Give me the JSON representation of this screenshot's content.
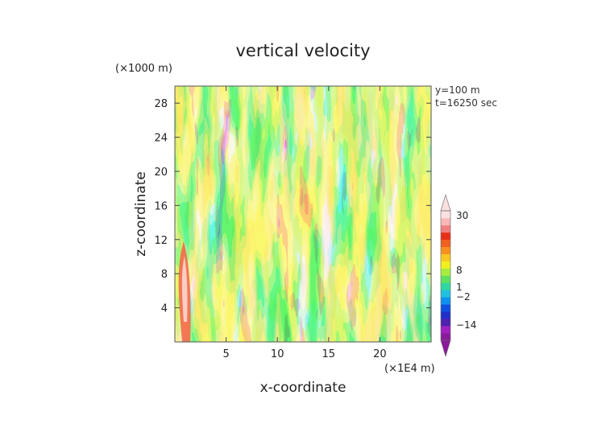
{
  "chart_data": {
    "type": "heatmap",
    "title": "vertical velocity",
    "xlabel": "x-coordinate",
    "ylabel": "z-coordinate",
    "x_multiplier_label": "(×1E4 m)",
    "y_multiplier_label": "(×1000 m)",
    "annotations": [
      "y=100 m",
      "t=16250 sec"
    ],
    "xlim": [
      0,
      25
    ],
    "ylim": [
      0,
      30
    ],
    "x_ticks": [
      5,
      10,
      15,
      20
    ],
    "y_ticks": [
      4,
      8,
      12,
      16,
      20,
      24,
      28
    ],
    "colorbar": {
      "labeled_levels": [
        "30",
        "8",
        "1",
        "−2",
        "−14"
      ],
      "colors": [
        "#8b1a9b",
        "#a020c0",
        "#5020b0",
        "#2030c8",
        "#1050e0",
        "#1090f0",
        "#20c0e0",
        "#30d8a0",
        "#60e060",
        "#a8ec40",
        "#f0f020",
        "#f8c820",
        "#f89020",
        "#f06020",
        "#e83018",
        "#f08080",
        "#f8b8b8",
        "#fce0e0"
      ]
    },
    "field_description_colors": {
      "strong_down": "#1e2fd0",
      "down": "#1a9ee8",
      "weak_down": "#22d0c8",
      "neutral_low": "#58dc58",
      "neutral": "#b6ec3a",
      "weak_up": "#f4f02a",
      "up": "#f89a28",
      "strong_up": "#e24418"
    }
  }
}
